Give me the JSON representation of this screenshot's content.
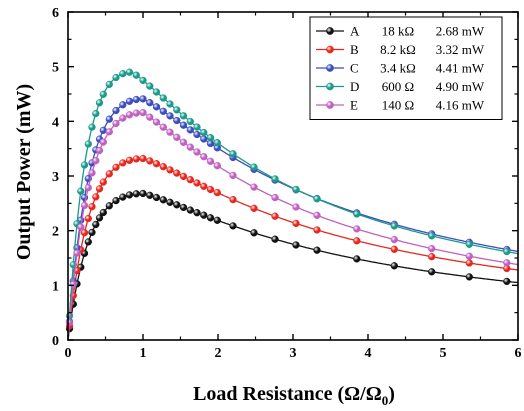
{
  "chart_data": {
    "type": "line",
    "title": "",
    "xlabel": "Load Resistance (Ω/Ω₀)",
    "xlabel_main": "Load Resistance (Ω/Ω",
    "xlabel_sub": "0",
    "xlabel_close": ")",
    "ylabel": "Output Power (mW)",
    "xlim": [
      0,
      6
    ],
    "ylim": [
      0,
      6
    ],
    "xticks": [
      "0",
      "1",
      "2",
      "3",
      "4",
      "5",
      "6"
    ],
    "yticks": [
      "0",
      "1",
      "2",
      "3",
      "4",
      "5",
      "6"
    ],
    "grid": false,
    "legend_position": "top-right",
    "series": [
      {
        "name": "A",
        "resistance": "18 kΩ",
        "power": "2.68 mW",
        "color": "#111111",
        "peak_x": 1.0,
        "peak_y": 2.68,
        "end_y": 1.05
      },
      {
        "name": "B",
        "resistance": "8.2 kΩ",
        "power": "3.32 mW",
        "color": "#e8261d",
        "peak_x": 1.0,
        "peak_y": 3.32,
        "end_y": 1.28
      },
      {
        "name": "C",
        "resistance": "3.4 kΩ",
        "power": "4.41 mW",
        "color": "#3b4cc0",
        "peak_x": 1.0,
        "peak_y": 4.41,
        "end_y": 1.62
      },
      {
        "name": "D",
        "resistance": "600 Ω",
        "power": "4.90 mW",
        "color": "#1a9a8a",
        "peak_x": 0.85,
        "peak_y": 4.9,
        "end_y": 1.58
      },
      {
        "name": "E",
        "resistance": "140 Ω",
        "power": "4.16 mW",
        "color": "#c060c0",
        "peak_x": 1.0,
        "peak_y": 4.16,
        "end_y": 1.38
      }
    ]
  }
}
